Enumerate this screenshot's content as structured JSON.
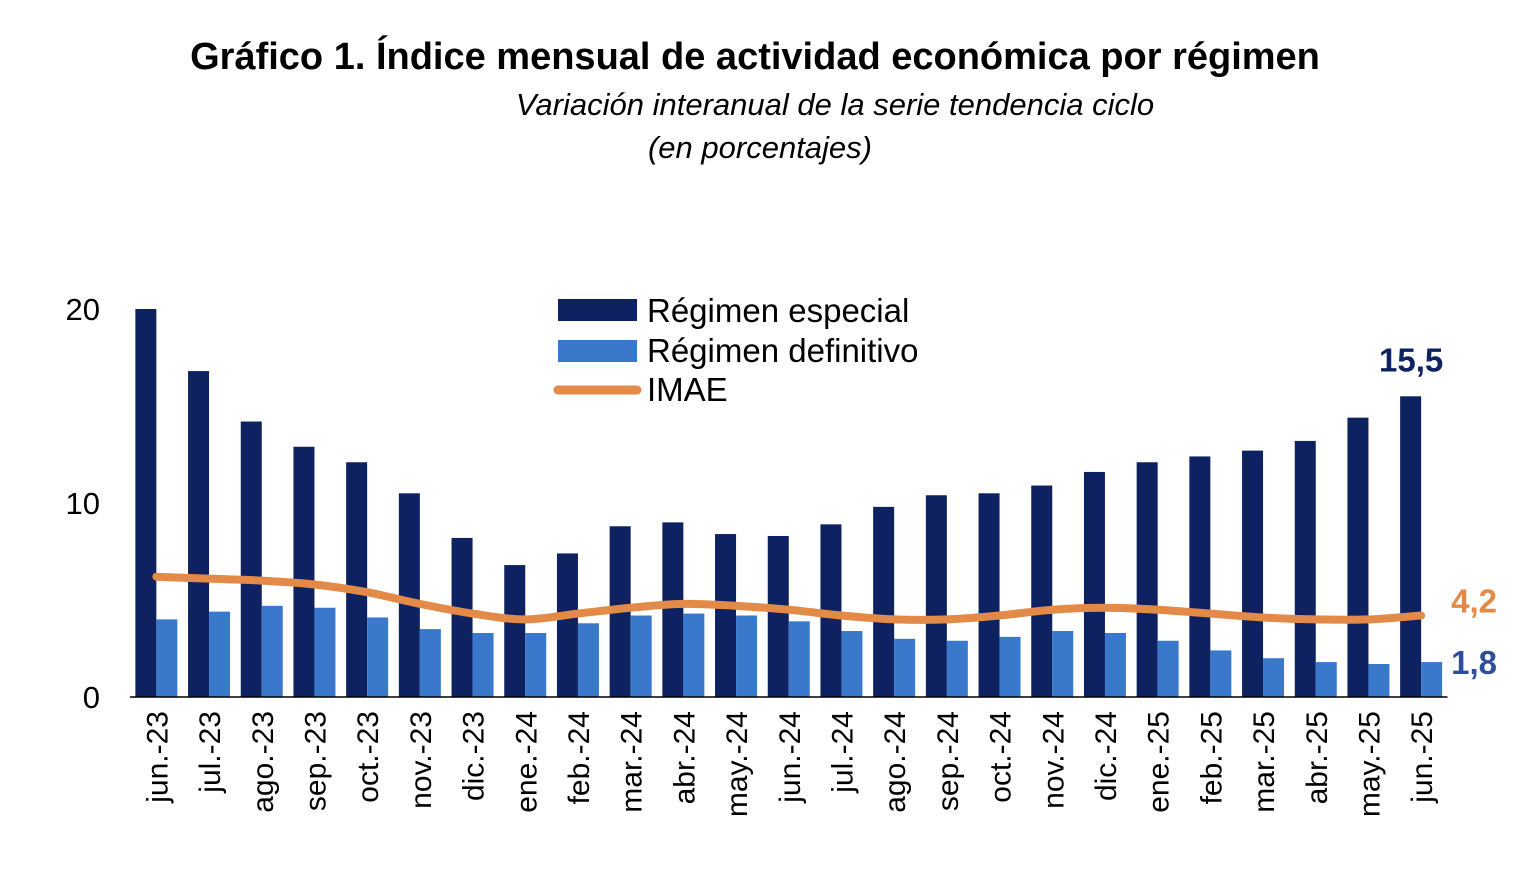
{
  "title": "Gráfico 1. Índice mensual de actividad económica por régimen",
  "subtitle": "Variación interanual de la serie tendencia ciclo",
  "unit_note": "(en porcentajes)",
  "colors": {
    "especial": "#0e2160",
    "definitivo": "#3a78cc",
    "imae": "#e48a48"
  },
  "chart_data": {
    "type": "bar",
    "title": "Gráfico 1. Índice mensual de actividad económica por régimen",
    "subtitle": "Variación interanual de la serie tendencia ciclo",
    "ylabel": "",
    "xlabel": "",
    "ylim": [
      0,
      20
    ],
    "yticks": [
      "0",
      "10",
      "20"
    ],
    "grid": false,
    "legend_position": "top-center",
    "categories": [
      "jun.-23",
      "jul.-23",
      "ago.-23",
      "sep.-23",
      "oct.-23",
      "nov.-23",
      "dic.-23",
      "ene.-24",
      "feb.-24",
      "mar.-24",
      "abr.-24",
      "may.-24",
      "jun.-24",
      "jul.-24",
      "ago.-24",
      "sep.-24",
      "oct.-24",
      "nov.-24",
      "dic.-24",
      "ene.-25",
      "feb.-25",
      "mar.-25",
      "abr.-25",
      "may.-25",
      "jun.-25"
    ],
    "series": [
      {
        "name": "Régimen especial",
        "type": "bar",
        "values": [
          20.0,
          16.8,
          14.2,
          12.9,
          12.1,
          10.5,
          8.2,
          6.8,
          7.4,
          8.8,
          9.0,
          8.4,
          8.3,
          8.9,
          9.8,
          10.4,
          10.5,
          10.9,
          11.6,
          12.1,
          12.4,
          12.7,
          13.2,
          14.4,
          15.5
        ]
      },
      {
        "name": "Régimen definitivo",
        "type": "bar",
        "values": [
          4.0,
          4.4,
          4.7,
          4.6,
          4.1,
          3.5,
          3.3,
          3.3,
          3.8,
          4.2,
          4.3,
          4.2,
          3.9,
          3.4,
          3.0,
          2.9,
          3.1,
          3.4,
          3.3,
          2.9,
          2.4,
          2.0,
          1.8,
          1.7,
          1.8
        ]
      },
      {
        "name": "IMAE",
        "type": "line",
        "values": [
          6.2,
          6.1,
          6.0,
          5.8,
          5.4,
          4.8,
          4.3,
          4.0,
          4.3,
          4.6,
          4.8,
          4.7,
          4.5,
          4.2,
          4.0,
          4.0,
          4.2,
          4.5,
          4.6,
          4.5,
          4.3,
          4.1,
          4.0,
          4.0,
          4.2
        ]
      }
    ],
    "data_labels": [
      {
        "series": "Régimen especial",
        "category": "jun.-25",
        "text": "15,5"
      },
      {
        "series": "IMAE",
        "category": "jun.-25",
        "text": "4,2"
      },
      {
        "series": "Régimen definitivo",
        "category": "jun.-25",
        "text": "1,8"
      }
    ]
  }
}
